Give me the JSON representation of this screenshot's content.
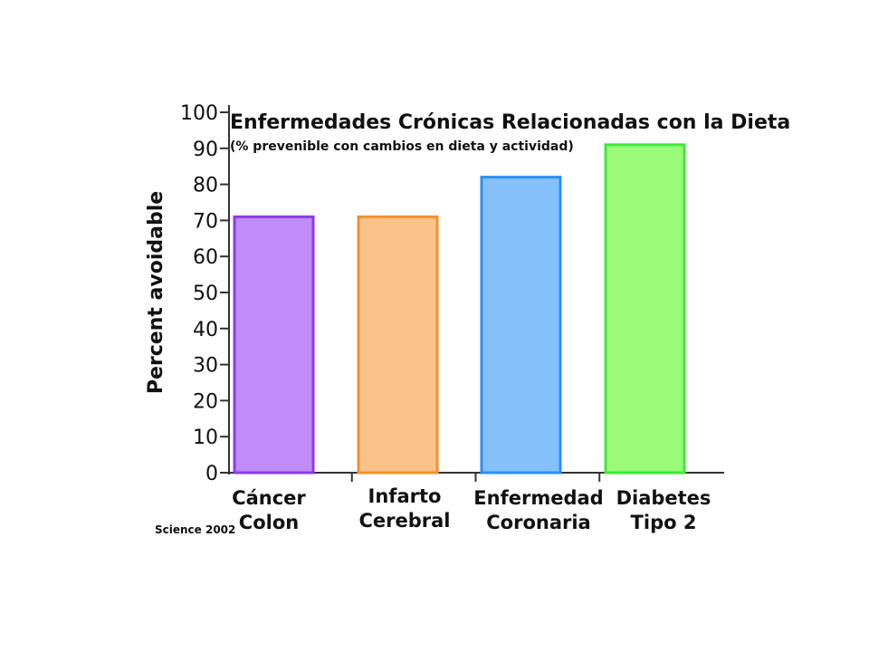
{
  "chart_data": {
    "type": "bar",
    "title": "Enfermedades Crónicas Relacionadas con la Dieta",
    "subtitle": "(% prevenible con cambios en dieta y actividad)",
    "ylabel": "Percent avoidable",
    "xlabel": "",
    "ylim": [
      0,
      100
    ],
    "yticks": [
      0,
      10,
      20,
      30,
      40,
      50,
      60,
      70,
      80,
      90,
      100
    ],
    "grid": false,
    "categories": [
      [
        "Cáncer",
        "Colon"
      ],
      [
        "Infarto",
        "Cerebral"
      ],
      [
        "Enfermedad",
        "Coronaria"
      ],
      [
        "Diabetes",
        "Tipo 2"
      ]
    ],
    "values": [
      71,
      71,
      82,
      91
    ],
    "colors": {
      "fill": [
        "#c08cf8",
        "#f9c28a",
        "#86c0fb",
        "#99fb78"
      ],
      "stroke": [
        "#8a3ee0",
        "#f2922e",
        "#2d8ff0",
        "#3fe83b"
      ]
    },
    "source": "Science 2002"
  }
}
